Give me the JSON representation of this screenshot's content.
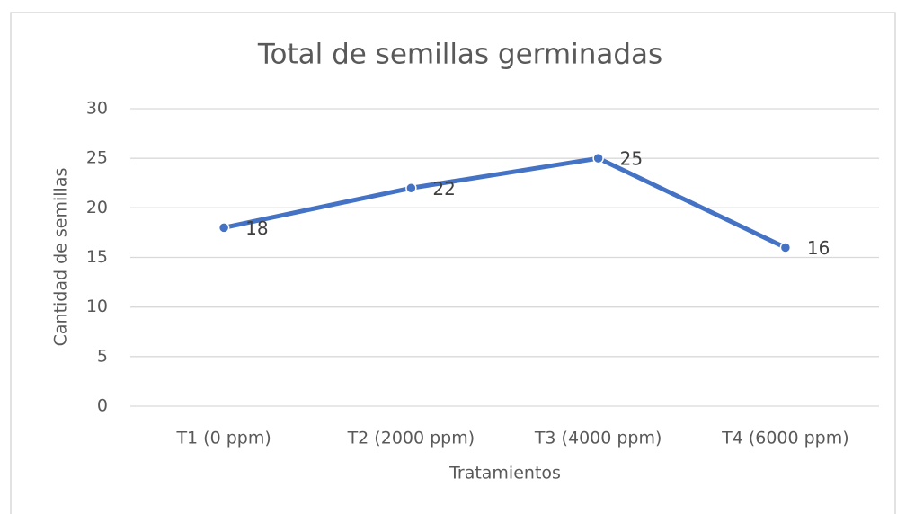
{
  "chart_data": {
    "type": "line",
    "title": "Total de semillas germinadas",
    "x_label": "Tratamientos",
    "y_label": "Cantidad de semillas",
    "categories": [
      "T1 (0 ppm)",
      "T2 (2000 ppm)",
      "T3 (4000 ppm)",
      "T4 (6000 ppm)"
    ],
    "series": [
      {
        "name": "Total",
        "color": "#4472c4",
        "values": [
          18,
          22,
          25,
          16
        ]
      }
    ],
    "ylim": [
      0,
      30
    ],
    "yticks": [
      0,
      5,
      10,
      15,
      20,
      25,
      30
    ],
    "grid": true,
    "data_labels": true
  }
}
